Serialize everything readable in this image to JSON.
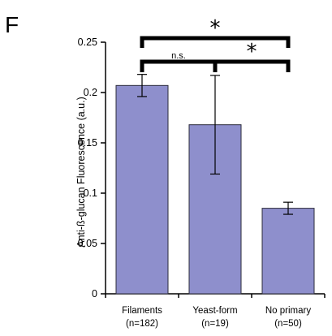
{
  "panel_label": "F",
  "colors": {
    "bar_fill": "#8e8fcc",
    "bar_stroke": "#2b2b3a",
    "axis": "#000000",
    "bracket": "#000000"
  },
  "chart_data": {
    "type": "bar",
    "title": "",
    "xlabel": "",
    "ylabel": "Anti-ß-glucan Fluorescence (a.u.)",
    "ylim": [
      0,
      0.25
    ],
    "yticks": [
      0,
      0.05,
      0.1,
      0.15,
      0.2,
      0.25
    ],
    "ytick_labels": [
      "0",
      "0.05",
      "0.1",
      "0.15",
      "0.2",
      "0.25"
    ],
    "grid": false,
    "legend": "none",
    "categories": [
      "Filaments",
      "Yeast-form",
      "No primary"
    ],
    "category_sublabels": [
      "(n=182)",
      "(n=19)",
      "(n=50)"
    ],
    "values": [
      0.207,
      0.168,
      0.085
    ],
    "errors": [
      0.011,
      0.049,
      0.006
    ],
    "significance": [
      {
        "between": [
          "Filaments",
          "No primary"
        ],
        "label": "*"
      },
      {
        "between": [
          "Filaments",
          "Yeast-form"
        ],
        "label": "n.s."
      },
      {
        "between": [
          "Yeast-form",
          "No primary"
        ],
        "label": "*"
      }
    ]
  }
}
